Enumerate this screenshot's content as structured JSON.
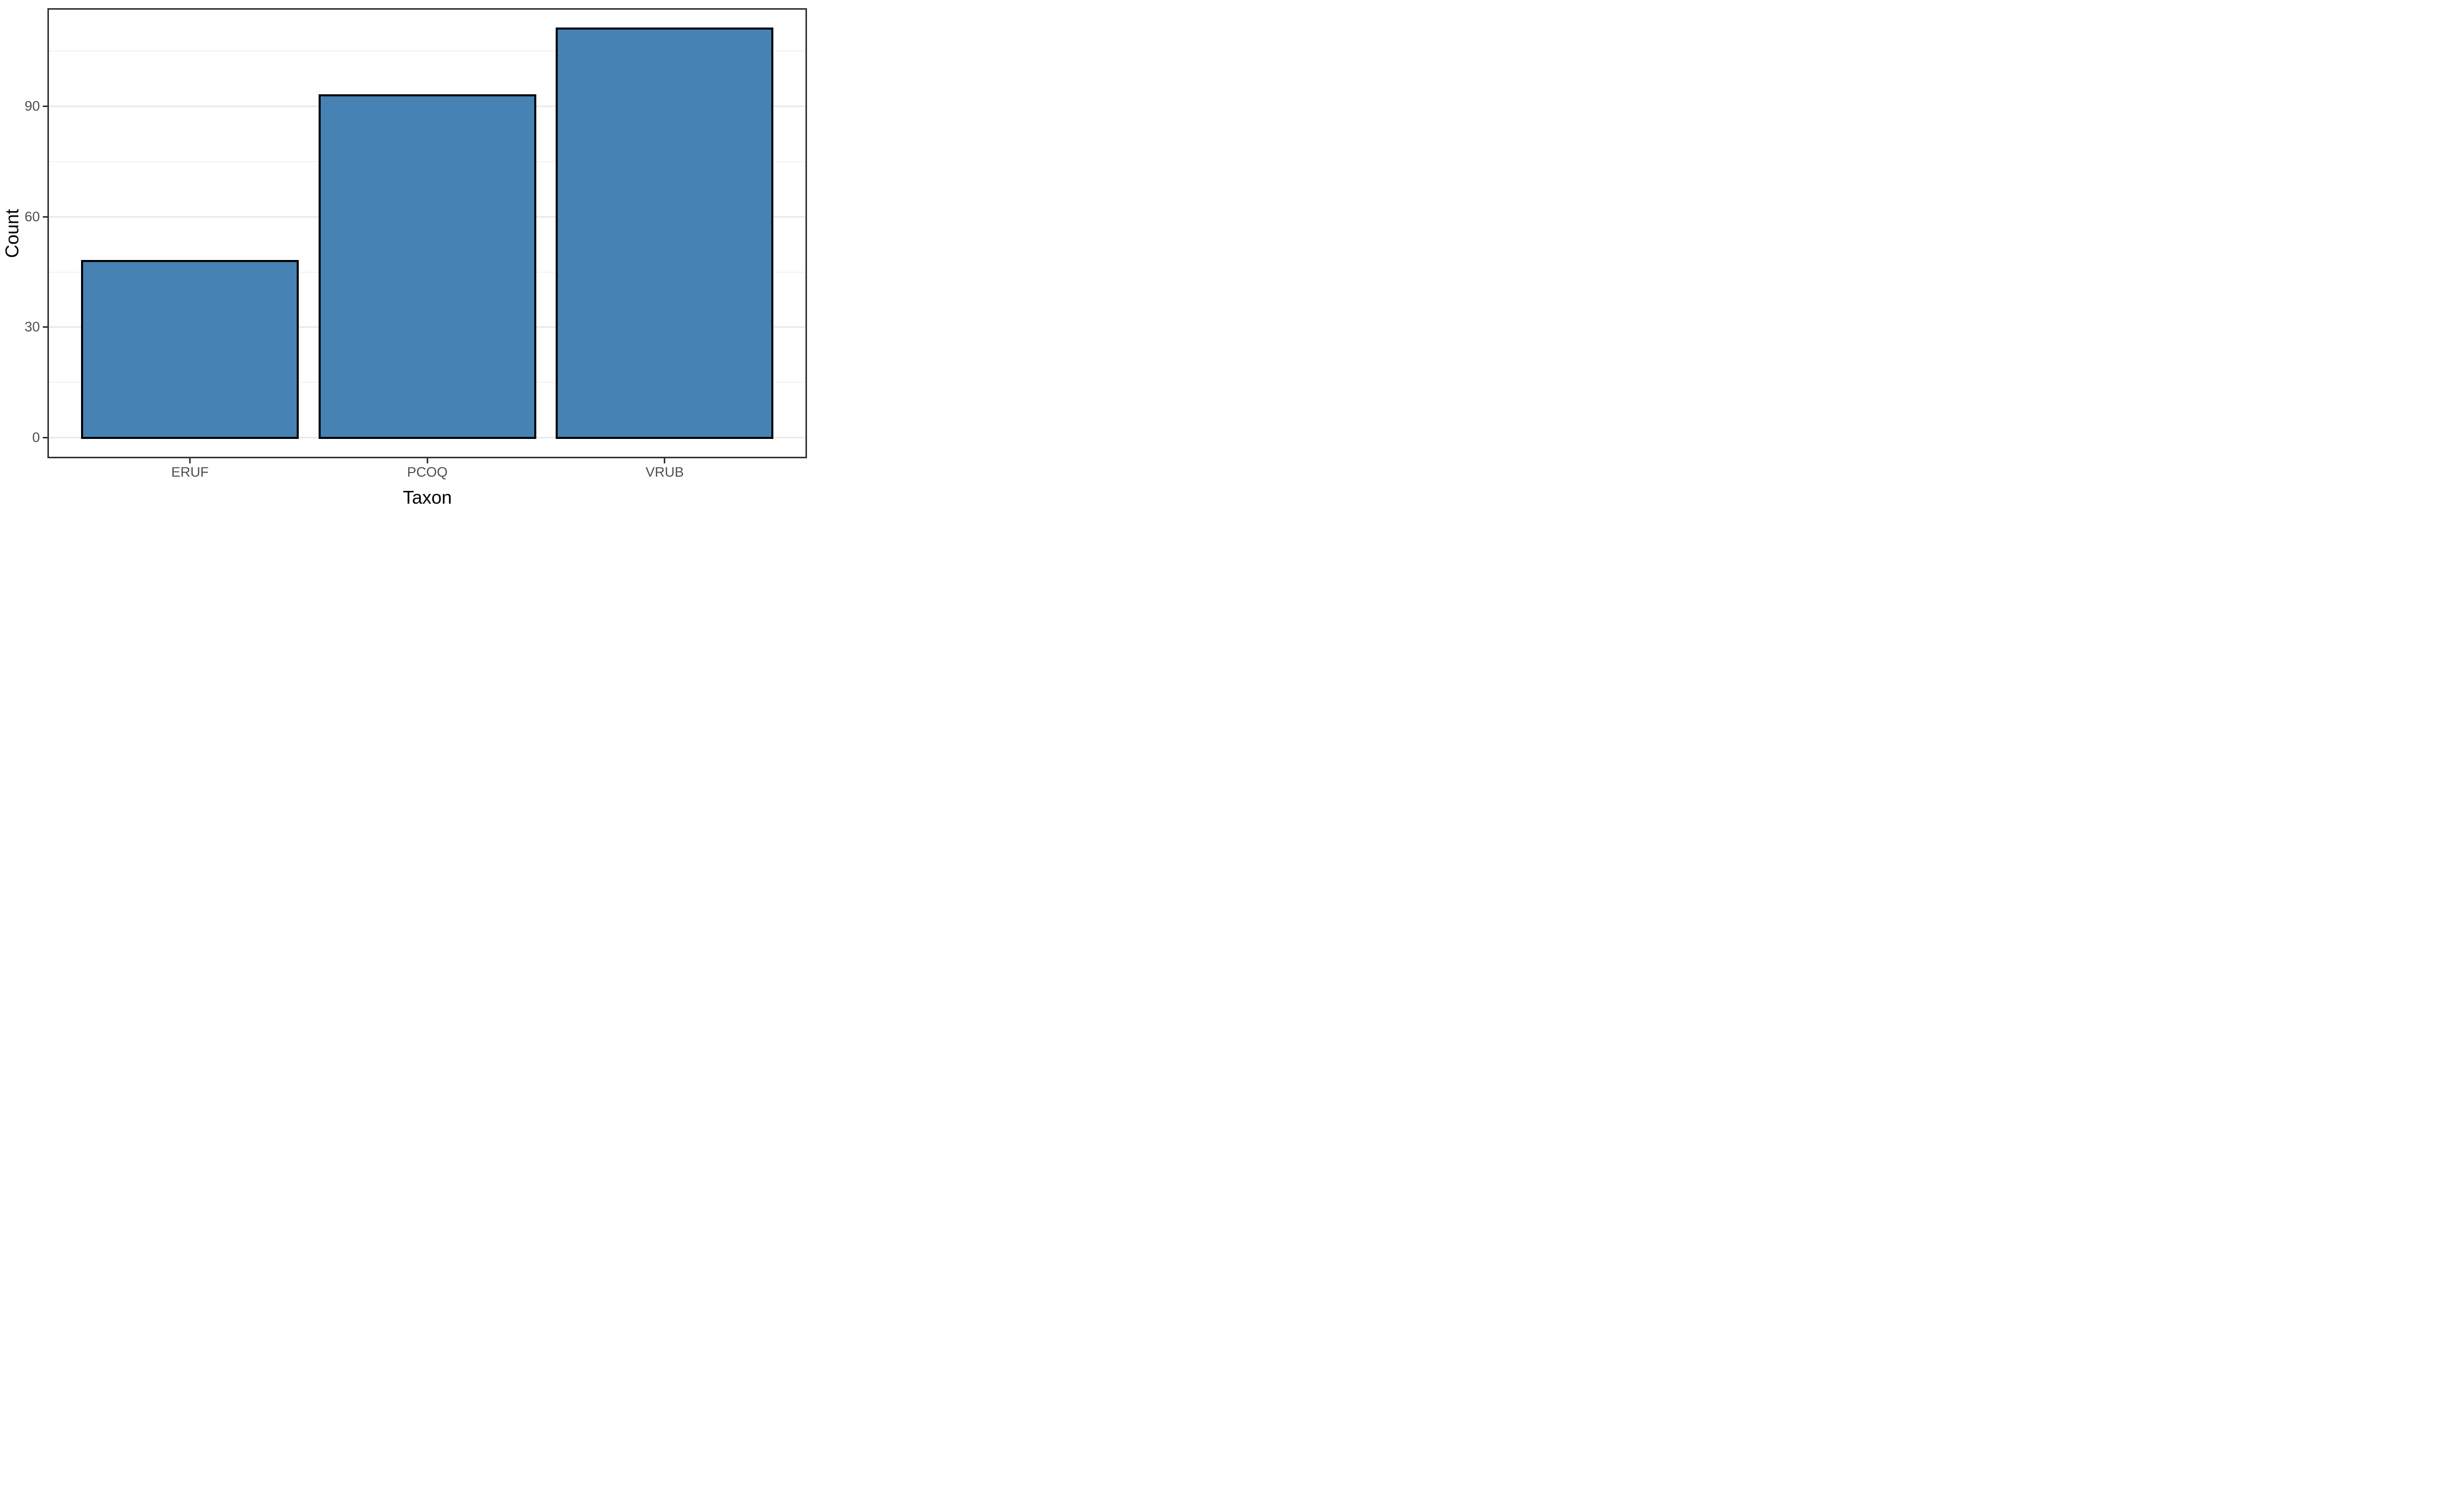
{
  "chart_data": {
    "type": "bar",
    "categories": [
      "ERUF",
      "PCOQ",
      "VRUB"
    ],
    "values": [
      48,
      93,
      111
    ],
    "title": "",
    "xlabel": "Taxon",
    "ylabel": "Count",
    "ylim": [
      -5.6,
      116.6
    ],
    "yticks": [
      0,
      30,
      60,
      90
    ],
    "ytick_labels": [
      "0",
      "30",
      "60",
      "90"
    ],
    "yticks_minor": [
      15,
      45,
      75,
      105
    ],
    "grid": "major+minor horizontal, on white panel",
    "legend": "none",
    "bar_relative_width": 0.9
  },
  "style": {
    "bar_fill": "#4682B4",
    "bar_stroke": "#000000",
    "panel_border": "#333333",
    "tick_color": "#333333",
    "tick_label_color": "#4d4d4d",
    "axis_title_color": "#000000",
    "grid_major": "#e8e8e8",
    "grid_minor": "#f2f2f2",
    "background": "#ffffff"
  }
}
